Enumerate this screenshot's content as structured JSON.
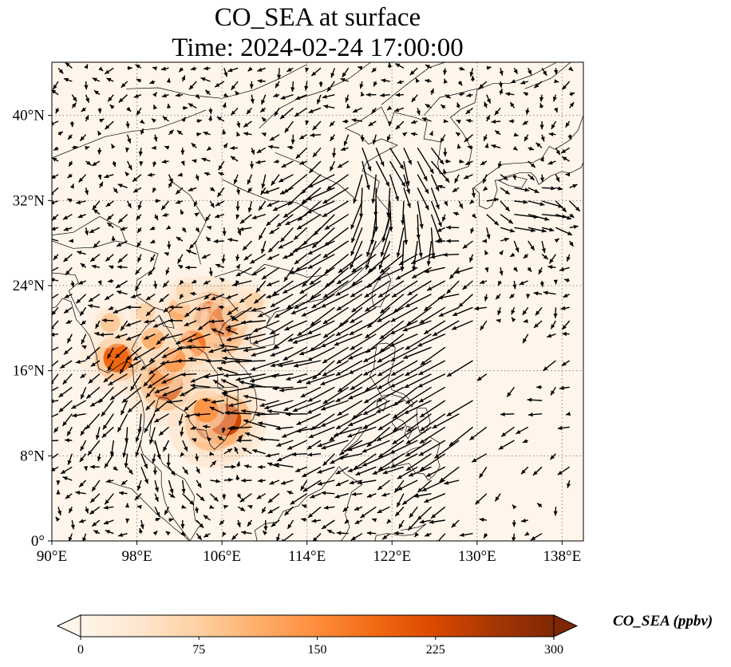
{
  "title": {
    "line1": "CO_SEA at surface",
    "line2": "Time: 2024-02-24 17:00:00"
  },
  "map": {
    "lon_range": [
      90,
      140
    ],
    "lat_range": [
      0,
      45
    ],
    "lon_ticks": [
      {
        "value": 90,
        "label": "90°E"
      },
      {
        "value": 98,
        "label": "98°E"
      },
      {
        "value": 106,
        "label": "106°E"
      },
      {
        "value": 114,
        "label": "114°E"
      },
      {
        "value": 122,
        "label": "122°E"
      },
      {
        "value": 130,
        "label": "130°E"
      },
      {
        "value": 138,
        "label": "138°E"
      }
    ],
    "lat_ticks": [
      {
        "value": 0,
        "label": "0°"
      },
      {
        "value": 8,
        "label": "8°N"
      },
      {
        "value": 16,
        "label": "16°N"
      },
      {
        "value": 24,
        "label": "24°N"
      },
      {
        "value": 32,
        "label": "32°N"
      },
      {
        "value": 40,
        "label": "40°N"
      }
    ],
    "gridlines": "dotted",
    "field_name": "CO_SEA",
    "hotspots": [
      {
        "lon": 105.5,
        "lat": 19.8,
        "value": 260
      },
      {
        "lon": 104.8,
        "lat": 21.0,
        "value": 230
      },
      {
        "lon": 106.2,
        "lat": 20.6,
        "value": 200
      },
      {
        "lon": 103.2,
        "lat": 18.5,
        "value": 170
      },
      {
        "lon": 102.0,
        "lat": 21.8,
        "value": 110
      },
      {
        "lon": 107.5,
        "lat": 21.5,
        "value": 90
      },
      {
        "lon": 100.8,
        "lat": 14.7,
        "value": 230
      },
      {
        "lon": 100.3,
        "lat": 15.8,
        "value": 180
      },
      {
        "lon": 101.5,
        "lat": 17.0,
        "value": 130
      },
      {
        "lon": 105.1,
        "lat": 11.0,
        "value": 250
      },
      {
        "lon": 106.3,
        "lat": 11.4,
        "value": 230
      },
      {
        "lon": 104.5,
        "lat": 12.3,
        "value": 140
      },
      {
        "lon": 96.2,
        "lat": 17.2,
        "value": 190
      },
      {
        "lon": 95.5,
        "lat": 20.5,
        "value": 80
      },
      {
        "lon": 99.5,
        "lat": 19.0,
        "value": 110
      },
      {
        "lon": 98.8,
        "lat": 21.5,
        "value": 70
      },
      {
        "lon": 102.5,
        "lat": 23.5,
        "value": 60
      },
      {
        "lon": 109.0,
        "lat": 22.5,
        "value": 70
      }
    ]
  },
  "colorbar": {
    "label": "CO_SEA (ppbv)",
    "min": 0,
    "max": 300,
    "extend": "both",
    "colormap": [
      "#fff5eb",
      "#fee6ce",
      "#fdd0a2",
      "#fdae6b",
      "#fd8d3c",
      "#f16913",
      "#d94801",
      "#a63603",
      "#7f2704"
    ],
    "ticks": [
      {
        "value": 0,
        "label": "0"
      },
      {
        "value": 75,
        "label": "75"
      },
      {
        "value": 150,
        "label": "150"
      },
      {
        "value": 225,
        "label": "225"
      },
      {
        "value": 300,
        "label": "300"
      }
    ]
  },
  "colors": {
    "background": "#fff5eb",
    "arrow": "#000000",
    "coastline": "#000000",
    "grid": "#888888"
  }
}
